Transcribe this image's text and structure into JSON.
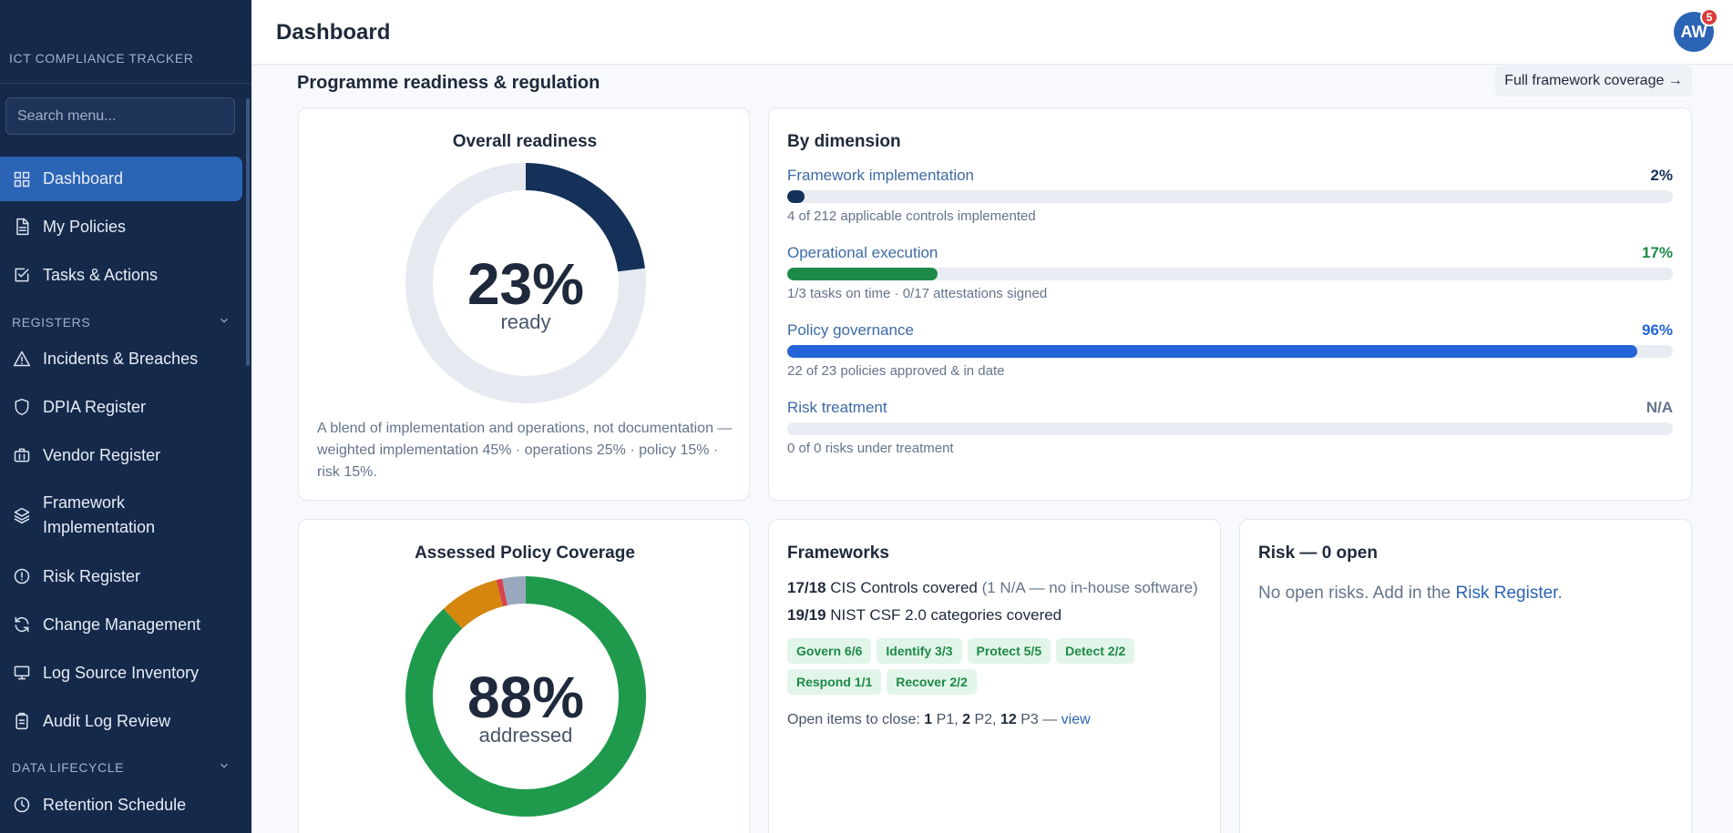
{
  "app": {
    "title": "ICT COMPLIANCE TRACKER"
  },
  "search": {
    "placeholder": "Search menu..."
  },
  "nav": {
    "dashboard": "Dashboard",
    "my_policies": "My Policies",
    "tasks": "Tasks & Actions",
    "registers_section": "REGISTERS",
    "incidents": "Incidents & Breaches",
    "dpia": "DPIA Register",
    "vendor": "Vendor Register",
    "framework_line1": "Framework",
    "framework_line2": "Implementation",
    "risk": "Risk Register",
    "change": "Change Management",
    "log_source": "Log Source Inventory",
    "audit_log": "Audit Log Review",
    "data_lifecycle_section": "DATA LIFECYCLE",
    "retention": "Retention Schedule"
  },
  "header": {
    "title": "Dashboard",
    "avatar_initials": "AW",
    "notification_count": "5"
  },
  "main": {
    "section_title": "Programme readiness & regulation",
    "coverage_button": "Full framework coverage →"
  },
  "readiness": {
    "title": "Overall readiness",
    "value": "23%",
    "sub": "ready",
    "fraction": 0.23,
    "note": "A blend of implementation and operations, not documentation — weighted implementation 45% · operations 25% · policy 15% · risk 15%."
  },
  "dimensions": {
    "title": "By dimension",
    "items": [
      {
        "label": "Framework implementation",
        "pct": "2%",
        "fraction": 0.02,
        "color": "#15315a",
        "detail": "4 of 212 applicable controls implemented"
      },
      {
        "label": "Operational execution",
        "pct": "17%",
        "fraction": 0.17,
        "color": "#1e8a47",
        "detail": "1/3 tasks on time · 0/17 attestations signed"
      },
      {
        "label": "Policy governance",
        "pct": "96%",
        "fraction": 0.96,
        "color": "#2563d8",
        "detail": "22 of 23 policies approved & in date"
      },
      {
        "label": "Risk treatment",
        "pct": "N/A",
        "fraction": 0,
        "color": "#64748b",
        "detail": "0 of 0 risks under treatment"
      }
    ]
  },
  "coverage": {
    "title": "Assessed Policy Coverage",
    "value": "88%",
    "sub": "addressed",
    "segments": [
      {
        "fraction": 0.88,
        "color": "#1f9a4c"
      },
      {
        "fraction": 0.08,
        "color": "#d4860e"
      },
      {
        "fraction": 0.008,
        "color": "#d9414b"
      },
      {
        "fraction": 0.052,
        "color": "#9aa8bd"
      }
    ]
  },
  "frameworks": {
    "title": "Frameworks",
    "cis_count": "17/18",
    "cis_text": "CIS Controls covered",
    "cis_note": "(1 N/A — no in-house software)",
    "nist_count": "19/19",
    "nist_text": "NIST CSF 2.0 categories covered",
    "tags": [
      "Govern 6/6",
      "Identify 3/3",
      "Protect 5/5",
      "Detect 2/2",
      "Respond 1/1",
      "Recover 2/2"
    ],
    "open_prefix": "Open items to close:",
    "p1_count": "1",
    "p1_label": "P1,",
    "p2_count": "2",
    "p2_label": "P2,",
    "p3_count": "12",
    "p3_label": "P3 —",
    "view_link": "view"
  },
  "risk": {
    "title": "Risk — 0 open",
    "empty_text": "No open risks. Add in the",
    "register_link": "Risk Register",
    "empty_suffix": "."
  },
  "colors": {
    "sidebar": "#15294a",
    "accent": "#2c64b5",
    "readiness": "#15315a",
    "track": "#e6eaf0"
  }
}
